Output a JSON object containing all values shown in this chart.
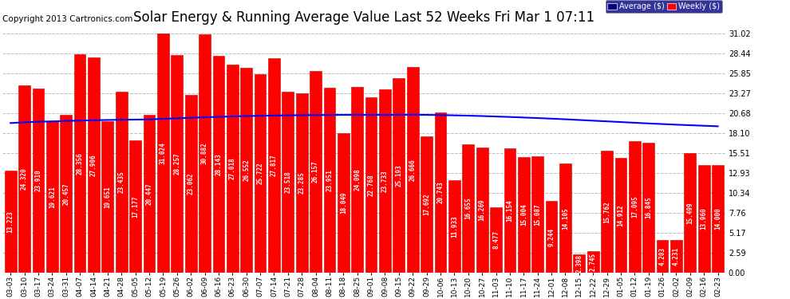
{
  "title": "Solar Energy & Running Average Value Last 52 Weeks Fri Mar 1 07:11",
  "copyright": "Copyright 2013 Cartronics.com",
  "categories": [
    "03-03",
    "03-10",
    "03-17",
    "03-24",
    "03-31",
    "04-07",
    "04-14",
    "04-21",
    "04-28",
    "05-05",
    "05-12",
    "05-19",
    "05-26",
    "06-02",
    "06-09",
    "06-16",
    "06-23",
    "06-30",
    "07-07",
    "07-14",
    "07-21",
    "07-28",
    "08-04",
    "08-11",
    "08-18",
    "08-25",
    "09-01",
    "09-08",
    "09-15",
    "09-22",
    "09-29",
    "10-06",
    "10-13",
    "10-20",
    "10-27",
    "11-03",
    "11-10",
    "11-17",
    "11-24",
    "12-01",
    "12-08",
    "12-15",
    "12-22",
    "12-29",
    "01-05",
    "01-12",
    "01-19",
    "01-26",
    "02-02",
    "02-09",
    "02-16",
    "02-23"
  ],
  "weekly_values": [
    13.223,
    24.32,
    23.91,
    19.621,
    20.457,
    28.356,
    27.906,
    19.651,
    23.435,
    17.177,
    20.447,
    31.024,
    28.257,
    23.062,
    30.882,
    28.143,
    27.018,
    26.552,
    25.722,
    27.817,
    23.518,
    23.285,
    26.157,
    23.951,
    18.049,
    24.098,
    22.768,
    23.733,
    25.193,
    26.666,
    17.692,
    20.743,
    11.933,
    16.655,
    16.269,
    8.477,
    16.154,
    15.004,
    15.087,
    9.244,
    14.105,
    2.398,
    2.745,
    15.762,
    14.912,
    17.095,
    16.845,
    4.203,
    4.231,
    15.499,
    13.96,
    14.0
  ],
  "running_avg": [
    19.4,
    19.5,
    19.57,
    19.62,
    19.67,
    19.72,
    19.77,
    19.8,
    19.83,
    19.85,
    19.87,
    19.95,
    20.02,
    20.08,
    20.15,
    20.21,
    20.26,
    20.31,
    20.34,
    20.38,
    20.4,
    20.42,
    20.44,
    20.45,
    20.46,
    20.46,
    20.46,
    20.46,
    20.47,
    20.48,
    20.46,
    20.44,
    20.4,
    20.36,
    20.31,
    20.25,
    20.19,
    20.12,
    20.05,
    19.97,
    19.89,
    19.8,
    19.71,
    19.62,
    19.53,
    19.44,
    19.35,
    19.27,
    19.19,
    19.12,
    19.05,
    18.98
  ],
  "bar_color": "#FF0000",
  "bar_edge_color": "#CC0000",
  "line_color": "#0000FF",
  "bg_color": "#FFFFFF",
  "grid_color": "#BBBBBB",
  "title_color": "#000000",
  "copyright_color": "#000000",
  "yticks": [
    0.0,
    2.59,
    5.17,
    7.76,
    10.34,
    12.93,
    15.51,
    18.1,
    20.68,
    23.27,
    25.85,
    28.44,
    31.02
  ],
  "ylim": [
    0.0,
    32.0
  ],
  "legend_avg_bg": "#000080",
  "legend_weekly_bg": "#FF0000",
  "title_fontsize": 12,
  "copyright_fontsize": 7.5,
  "label_fontsize": 5.5
}
